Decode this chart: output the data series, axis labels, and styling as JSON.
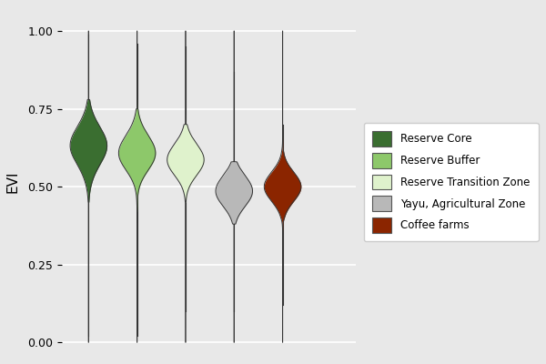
{
  "categories": [
    "Reserve Core",
    "Reserve Buffer",
    "Reserve Transition Zone",
    "Yayu, Agricultural Zone",
    "Coffee farms"
  ],
  "colors": [
    "#3a6e30",
    "#8dc86a",
    "#dff2cc",
    "#b8b8b8",
    "#8b2500"
  ],
  "edge_color": "#333333",
  "background_color": "#e8e8e8",
  "panel_color": "#e8e8e8",
  "grid_color": "#ffffff",
  "ylabel": "EVI",
  "ylim": [
    -0.05,
    1.08
  ],
  "yticks": [
    0.0,
    0.25,
    0.5,
    0.75,
    1.0
  ],
  "violin_width": 0.38,
  "figsize": [
    6.0,
    4.0
  ],
  "dpi": 100,
  "x_positions": [
    1,
    2,
    3,
    4,
    5
  ],
  "xlim": [
    0.45,
    6.5
  ]
}
